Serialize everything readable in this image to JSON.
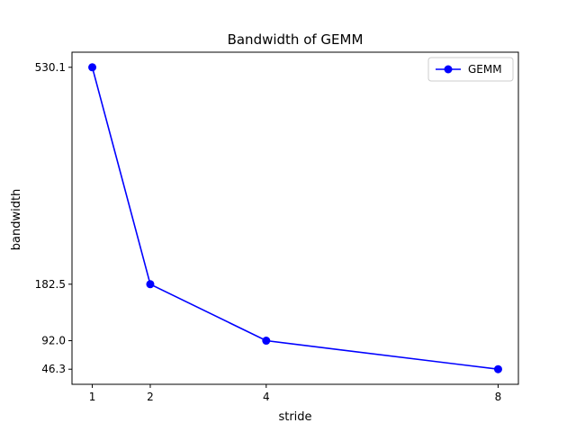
{
  "chart_data": {
    "type": "line",
    "title": "Bandwidth of GEMM",
    "xlabel": "stride",
    "ylabel": "bandwidth",
    "x": [
      1,
      2,
      4,
      8
    ],
    "xticks": [
      "1",
      "2",
      "4",
      "8"
    ],
    "yticks": [
      "46.3",
      "92.0",
      "182.5",
      "530.1"
    ],
    "xlim": [
      0.65,
      8.35
    ],
    "ylim": [
      22.1,
      554.3
    ],
    "grid": false,
    "legend": "top-right",
    "series": [
      {
        "name": "GEMM",
        "values": [
          530.1,
          182.5,
          92.0,
          46.3
        ],
        "color": "#0000ff",
        "marker": "circle"
      }
    ]
  }
}
